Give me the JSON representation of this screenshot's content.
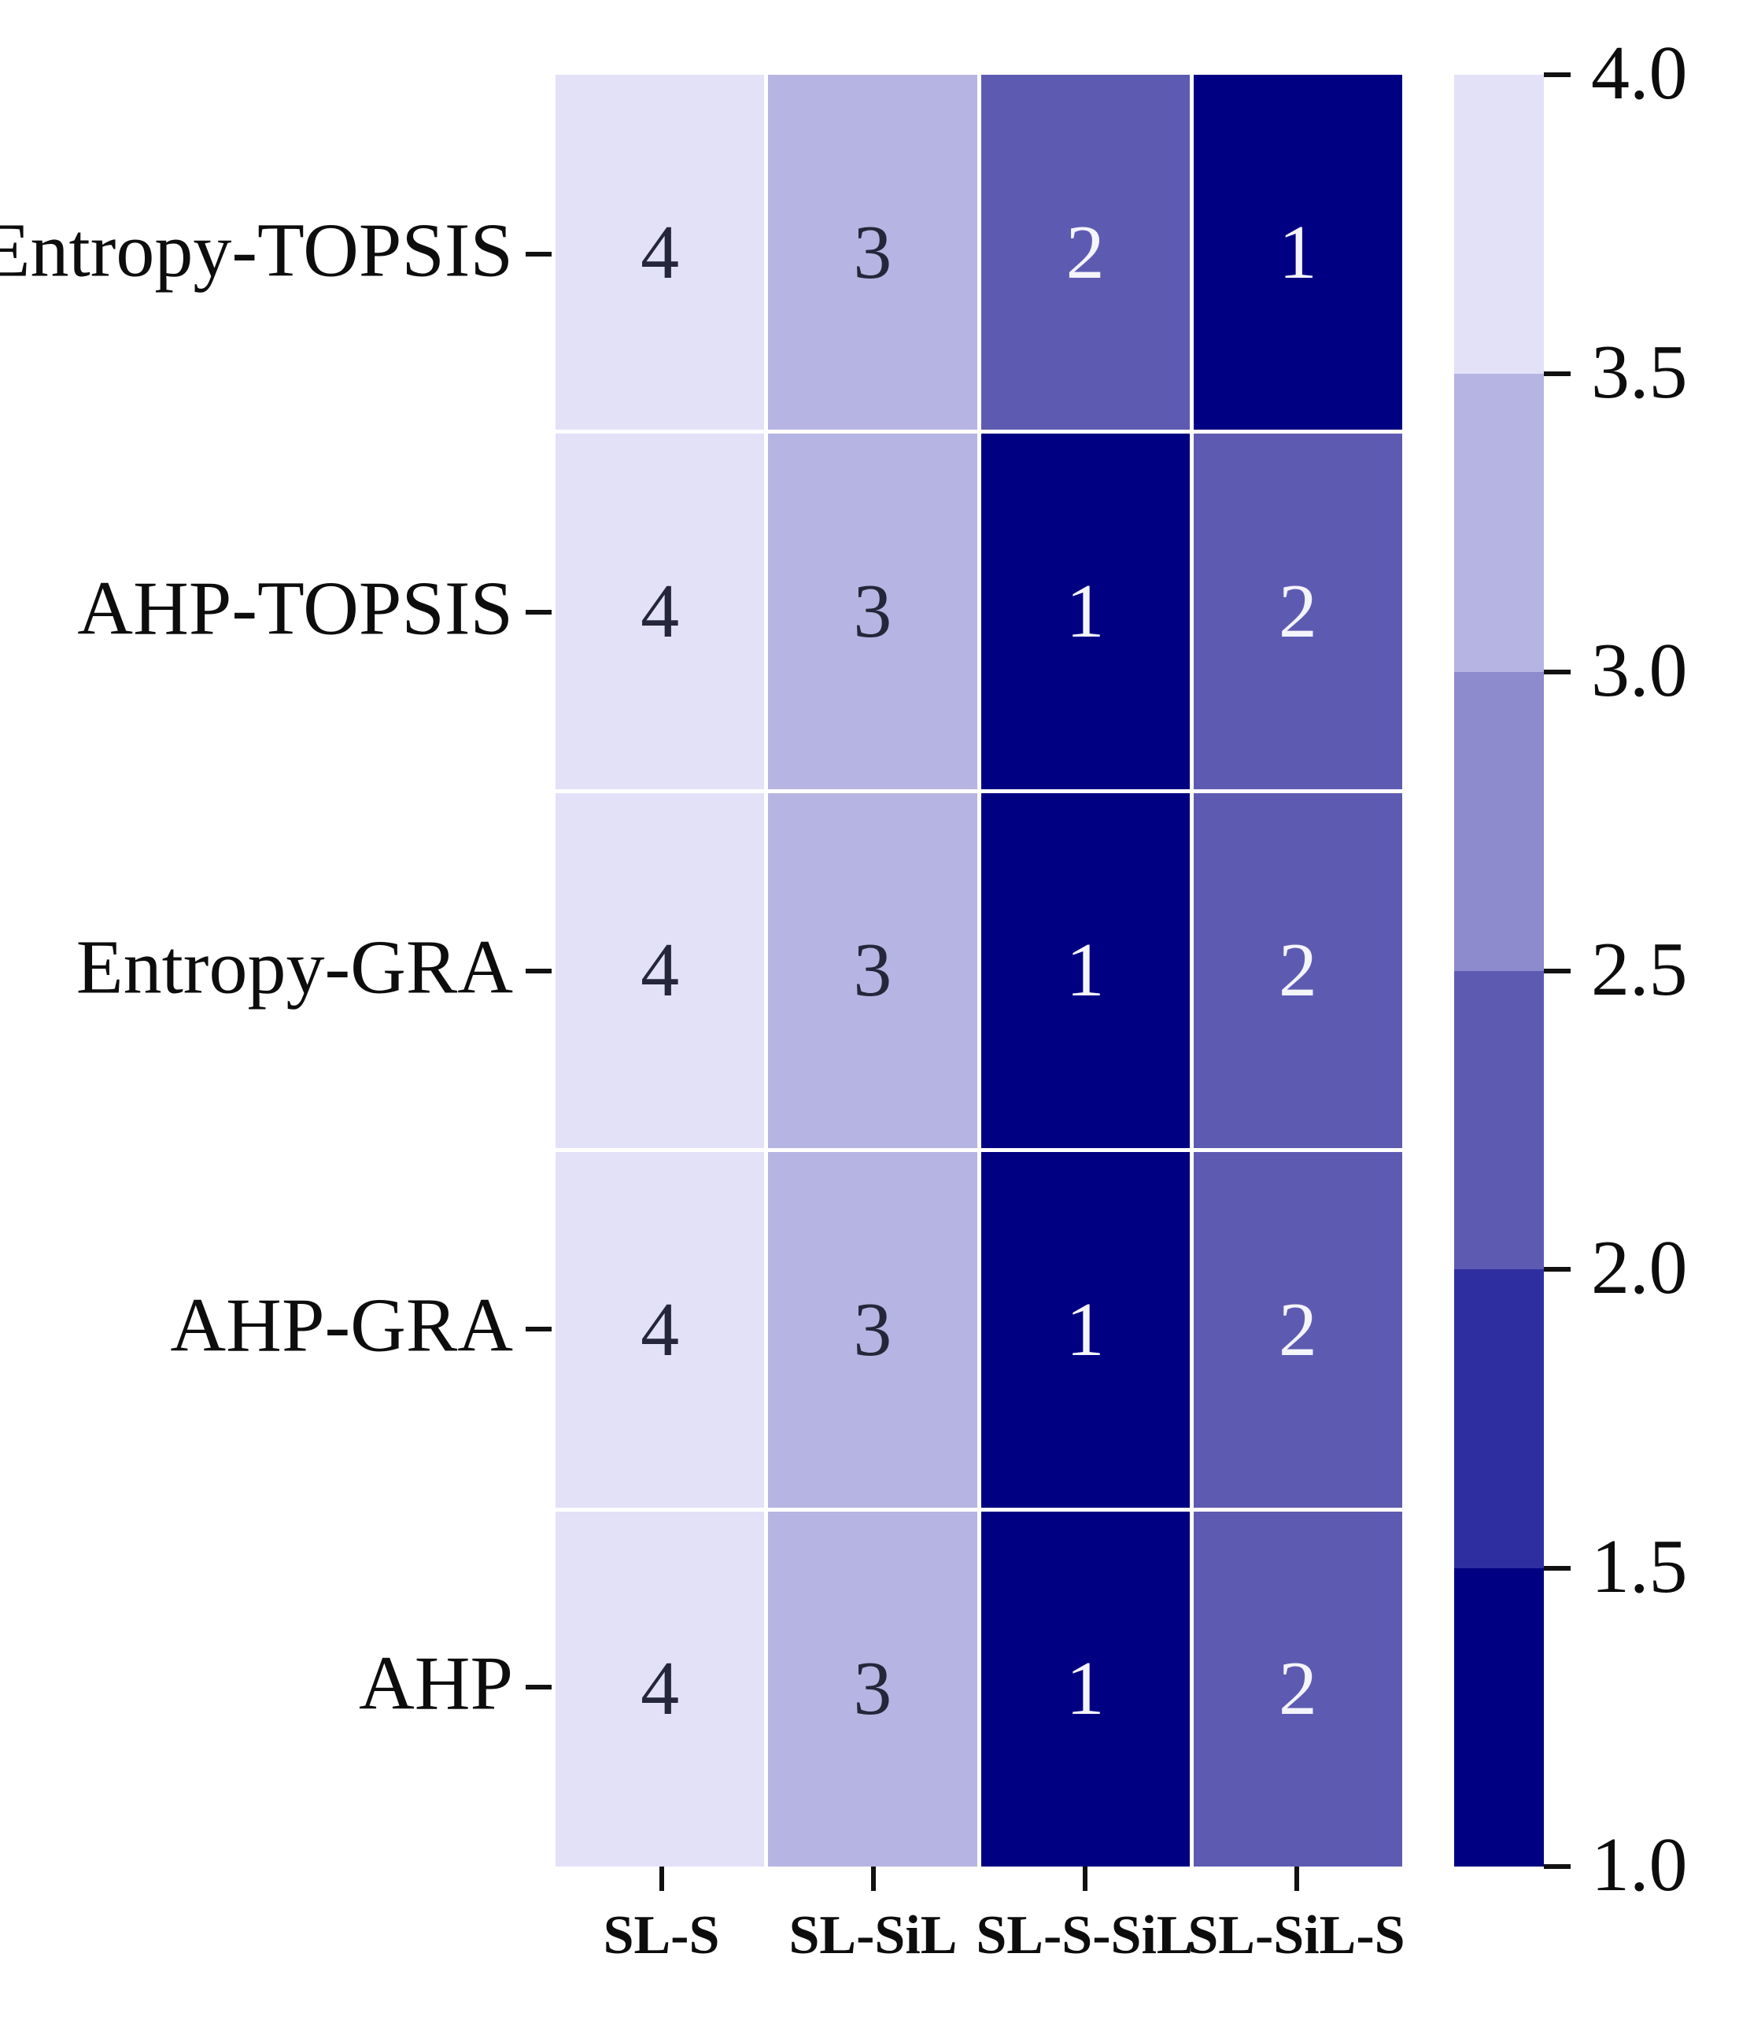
{
  "chart_data": {
    "type": "heatmap",
    "title": "",
    "xlabel": "",
    "ylabel": "",
    "rows": [
      "Entropy-TOPSIS",
      "AHP-TOPSIS",
      "Entropy-GRA",
      "AHP-GRA",
      "AHP"
    ],
    "columns": [
      "SL-S",
      "SL-SiL",
      "SL-S-SiL",
      "SL-SiL-S"
    ],
    "values": [
      [
        4,
        3,
        2,
        1
      ],
      [
        4,
        3,
        1,
        2
      ],
      [
        4,
        3,
        1,
        2
      ],
      [
        4,
        3,
        1,
        2
      ],
      [
        4,
        3,
        1,
        2
      ]
    ],
    "value_range": [
      1.0,
      4.0
    ],
    "grid": false,
    "gridline_color": "#ffffff",
    "cell_colors_by_value": {
      "1": "#000082",
      "2": "#5d5bb1",
      "3": "#b6b4e2",
      "4": "#e2e1f7"
    },
    "annotation_text_dark": "#26263a",
    "annotation_text_light": "#f4f4fb",
    "colorbar": {
      "position": "right",
      "tick_labels": [
        "4.0",
        "3.5",
        "3.0",
        "2.5",
        "2.0",
        "1.5",
        "1.0"
      ],
      "segment_colors_top_to_bottom": [
        "#e2e1f7",
        "#b6b4e2",
        "#8d8acd",
        "#5d5bb1",
        "#2f2ea1",
        "#000082"
      ]
    }
  }
}
